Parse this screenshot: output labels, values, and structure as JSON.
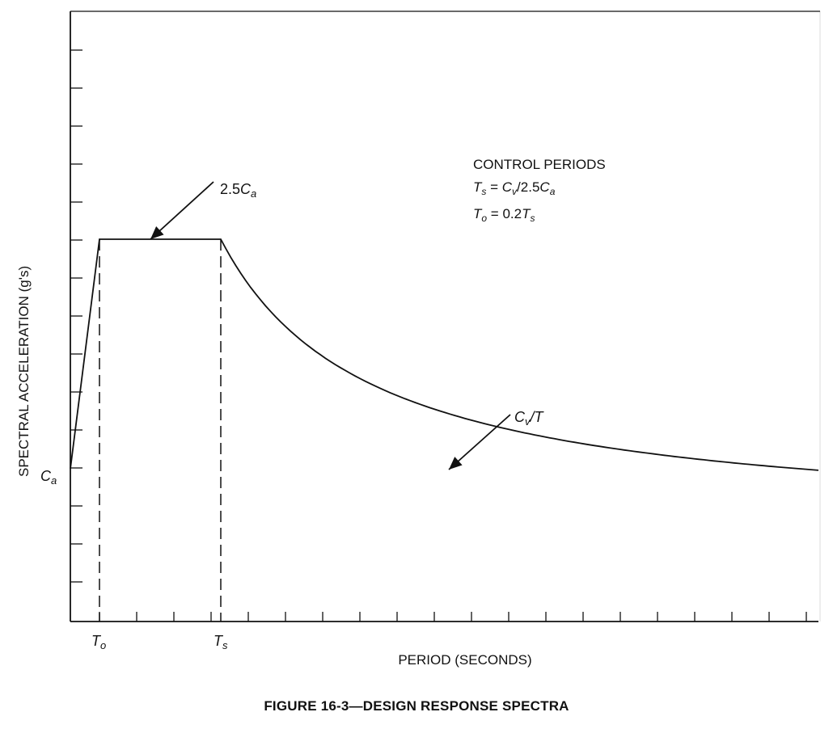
{
  "chart_data": {
    "type": "line",
    "title": "",
    "caption": "FIGURE 16-3—DESIGN RESPONSE SPECTRA",
    "xlabel": "PERIOD (SECONDS)",
    "ylabel": "SPECTRAL ACCELERATION (g's)",
    "x_tick_count": 20,
    "y_tick_count": 15,
    "grid": false,
    "legend": "none",
    "curve": {
      "description": "design response spectrum",
      "points_normalized": [
        {
          "T": 0.0,
          "Sa": 1.0
        },
        {
          "T": 0.2,
          "Sa": 2.5
        },
        {
          "T": 1.0,
          "Sa": 2.5
        },
        {
          "T": 1.5,
          "Sa": 1.667
        },
        {
          "T": 2.0,
          "Sa": 1.25
        },
        {
          "T": 3.0,
          "Sa": 0.833
        },
        {
          "T": 4.0,
          "Sa": 0.625
        },
        {
          "T": 5.0,
          "Sa": 0.5
        }
      ],
      "segments": [
        "linear rise Ca → 2.5Ca over 0–To",
        "plateau 2.5Ca over To–Ts",
        "descending Cv/T beyond Ts"
      ]
    },
    "annotations": {
      "plateau_label_prefix": "2.5",
      "plateau_label_var": "C",
      "plateau_label_sub": "a",
      "decay_label_var": "C",
      "decay_label_sub": "v",
      "decay_label_suffix": "/T",
      "y_marker_var": "C",
      "y_marker_sub": "a",
      "x_marker_to_var": "T",
      "x_marker_to_sub": "o",
      "x_marker_ts_var": "T",
      "x_marker_ts_sub": "s"
    },
    "control_periods": {
      "heading": "CONTROL PERIODS",
      "eq1": {
        "lhs_var": "T",
        "lhs_sub": "s",
        "eq": " = ",
        "r1_var": "C",
        "r1_sub": "v",
        "mid": "/2.5",
        "r2_var": "C",
        "r2_sub": "a"
      },
      "eq2": {
        "lhs_var": "T",
        "lhs_sub": "o",
        "eq": " = 0.2",
        "r_var": "T",
        "r_sub": "s"
      }
    }
  }
}
